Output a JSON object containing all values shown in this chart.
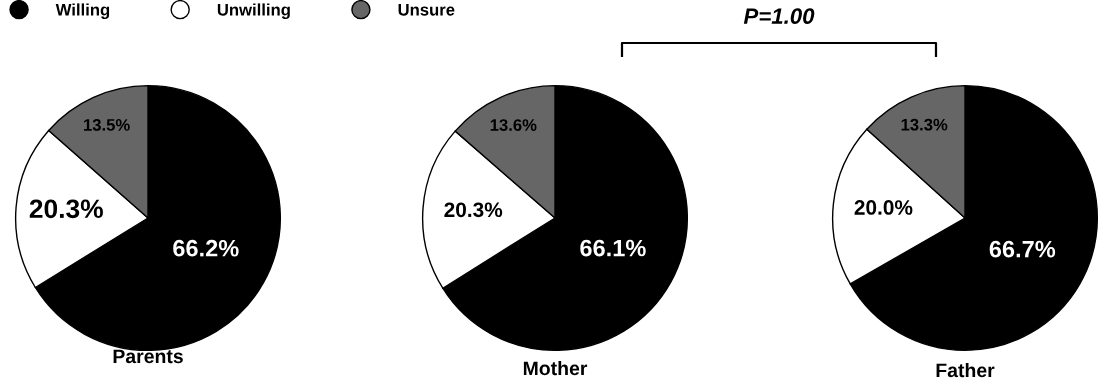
{
  "chart_data": [
    {
      "type": "pie",
      "title": "Parents",
      "categories": [
        "Willing",
        "Unwilling",
        "Unsure"
      ],
      "values": [
        66.2,
        20.3,
        13.5
      ],
      "colors": [
        "#000000",
        "#ffffff",
        "#666666"
      ],
      "value_labels": [
        "66.2%",
        "20.3%",
        "13.5%"
      ],
      "legend": "top right"
    },
    {
      "type": "pie",
      "title": "Mother",
      "categories": [
        null,
        null,
        null
      ],
      "values": [
        66.1,
        20.3,
        13.6
      ],
      "colors": [
        "#000000",
        "#ffffff",
        "#666666"
      ],
      "value_labels": [
        "66.1%",
        "20.3%",
        "13.6%"
      ]
    },
    {
      "type": "pie",
      "title": "Father",
      "categories": [
        null,
        null,
        null
      ],
      "values": [
        66.7,
        20.0,
        13.3
      ],
      "colors": [
        "#000000",
        "#ffffff",
        "#666666"
      ],
      "value_labels": [
        "66.7%",
        "20.0%",
        "13.3%"
      ],
      "annotations": [
        "P=1.00"
      ]
    }
  ]
}
